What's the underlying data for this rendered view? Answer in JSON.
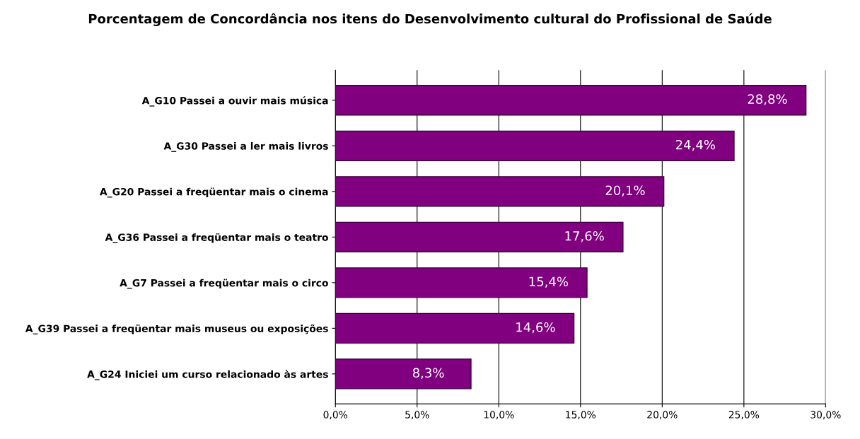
{
  "chart_data": {
    "type": "bar",
    "orientation": "horizontal",
    "title": "Porcentagem de Concordância nos itens do Desenvolvimento cultural do Profissional de Saúde",
    "categories": [
      "A_G10 Passei a ouvir mais música",
      "A_G30 Passei a ler mais livros",
      "A_G20 Passei a freqüentar mais o cinema",
      "A_G36 Passei a freqüentar mais o teatro",
      "A_G7 Passei a freqüentar mais o circo",
      "A_G39 Passei a freqüentar mais museus ou exposições",
      "A_G24 Iniciei um curso relacionado às artes"
    ],
    "values": [
      28.8,
      24.4,
      20.1,
      17.6,
      15.4,
      14.6,
      8.3
    ],
    "value_labels": [
      "28,8%",
      "24,4%",
      "20,1%",
      "17,6%",
      "15,4%",
      "14,6%",
      "8,3%"
    ],
    "color": "#800080",
    "xlim": [
      0,
      30
    ],
    "xticks": [
      {
        "value": 0,
        "label": "0,0%"
      },
      {
        "value": 5,
        "label": "5,0%"
      },
      {
        "value": 10,
        "label": "10,0%"
      },
      {
        "value": 15,
        "label": "15,0%"
      },
      {
        "value": 20,
        "label": "20,0%"
      },
      {
        "value": 25,
        "label": "25,0%"
      },
      {
        "value": 30,
        "label": "30,0%"
      }
    ],
    "grid": "x"
  }
}
